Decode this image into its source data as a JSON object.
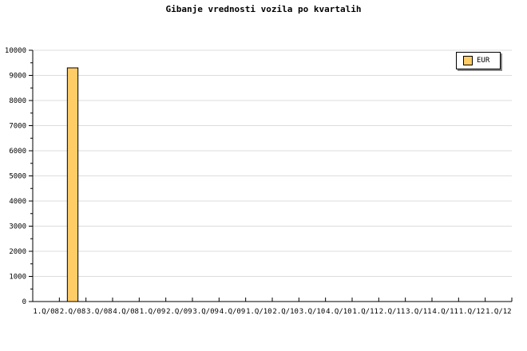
{
  "chart_data": {
    "type": "bar",
    "title": "Gibanje vrednosti vozila po kvartalih",
    "categories": [
      "1.Q/08",
      "2.Q/08",
      "3.Q/08",
      "4.Q/08",
      "1.Q/09",
      "2.Q/09",
      "3.Q/09",
      "4.Q/09",
      "1.Q/10",
      "2.Q/10",
      "3.Q/10",
      "4.Q/10",
      "1.Q/11",
      "2.Q/11",
      "3.Q/11",
      "4.Q/11",
      "1.Q/12",
      "1.Q/12"
    ],
    "series": [
      {
        "name": "EUR",
        "values": [
          0,
          9300,
          0,
          0,
          0,
          0,
          0,
          0,
          0,
          0,
          0,
          0,
          0,
          0,
          0,
          0,
          0,
          0
        ],
        "color": "#ffcc66"
      }
    ],
    "ylim": [
      0,
      10000
    ],
    "yticks": [
      0,
      1000,
      2000,
      3000,
      4000,
      5000,
      6000,
      7000,
      8000,
      9000,
      10000
    ],
    "grid": true,
    "legend": "top-right"
  }
}
